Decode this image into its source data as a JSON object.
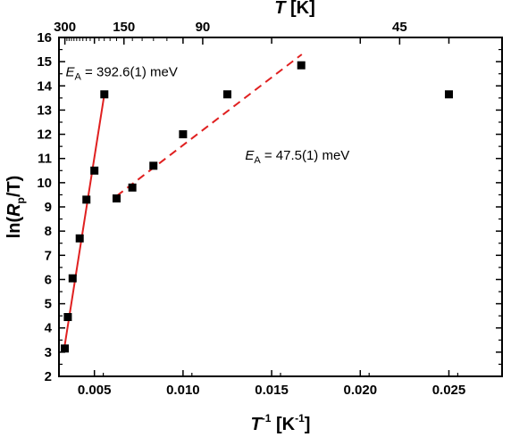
{
  "chart_data": {
    "type": "scatter",
    "x": [
      0.00333,
      0.0035,
      0.00377,
      0.00417,
      0.00455,
      0.005,
      0.00556,
      0.00625,
      0.00714,
      0.00833,
      0.01,
      0.0125,
      0.01667,
      0.025
    ],
    "y": [
      3.15,
      4.45,
      6.05,
      7.7,
      9.3,
      10.5,
      13.65,
      9.35,
      9.8,
      10.7,
      12.0,
      13.65,
      14.85,
      13.65
    ],
    "xlim": [
      0.003,
      0.028
    ],
    "ylim": [
      2,
      16
    ],
    "x_ticks": [
      0.005,
      0.01,
      0.015,
      0.02,
      0.025
    ],
    "x_tick_labels": [
      "0.005",
      "0.010",
      "0.015",
      "0.020",
      "0.025"
    ],
    "y_ticks": [
      2,
      3,
      4,
      5,
      6,
      7,
      8,
      9,
      10,
      11,
      12,
      13,
      14,
      15,
      16
    ],
    "y_tick_labels": [
      "2",
      "3",
      "4",
      "5",
      "6",
      "7",
      "8",
      "9",
      "10",
      "11",
      "12",
      "13",
      "14",
      "15",
      "16"
    ],
    "top_axis": {
      "title_main": "T",
      "title_unit": " [K]",
      "ticks": [
        300,
        150,
        90,
        45
      ],
      "tick_labels": [
        "300",
        "150",
        "90",
        "45"
      ]
    },
    "xlabel": {
      "main": "T",
      "sup": "-1",
      "unit": " [K",
      "unit_sup": "-1",
      "close": "]"
    },
    "ylabel": {
      "pre": "ln(",
      "main": "R",
      "sub": "p",
      "post": "/T)"
    },
    "fits": [
      {
        "style": "solid",
        "color": "#e02020",
        "x": [
          0.00333,
          0.00556
        ],
        "y": [
          3.3,
          13.65
        ]
      },
      {
        "style": "dashed",
        "color": "#e02020",
        "x": [
          0.00625,
          0.0167
        ],
        "y": [
          9.45,
          15.3
        ]
      }
    ],
    "annotations": [
      {
        "symbol": "E",
        "sub": "A",
        "text": " = 392.6(1) meV",
        "x": 0.00338,
        "y": 14.4
      },
      {
        "symbol": "E",
        "sub": "A",
        "text": " = 47.5(1) meV",
        "x": 0.0135,
        "y": 10.95
      }
    ],
    "marker_color": "#000000",
    "grid": false
  }
}
